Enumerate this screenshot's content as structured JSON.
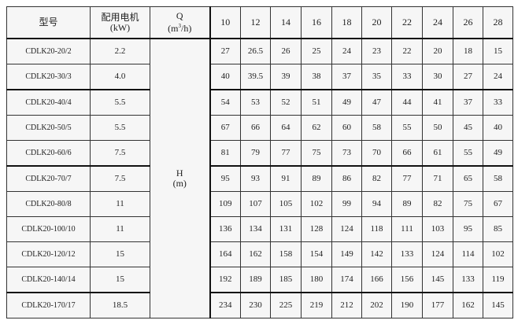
{
  "header": {
    "model": "型号",
    "motor_line1": "配用电机",
    "motor_line2": "(kW)",
    "flow_line1": "Q",
    "flow_line2_pre": "(m",
    "flow_sup": "3",
    "flow_line2_post": "/h)",
    "head_line1": "H",
    "head_line2": "(m)",
    "flows": [
      "10",
      "12",
      "14",
      "16",
      "18",
      "20",
      "22",
      "24",
      "26",
      "28"
    ]
  },
  "rows": [
    {
      "model": "CDLK20-20/2",
      "kw": "2.2",
      "heads": [
        "27",
        "26.5",
        "26",
        "25",
        "24",
        "23",
        "22",
        "20",
        "18",
        "15"
      ]
    },
    {
      "model": "CDLK20-30/3",
      "kw": "4.0",
      "heads": [
        "40",
        "39.5",
        "39",
        "38",
        "37",
        "35",
        "33",
        "30",
        "27",
        "24"
      ]
    },
    {
      "model": "CDLK20-40/4",
      "kw": "5.5",
      "heads": [
        "54",
        "53",
        "52",
        "51",
        "49",
        "47",
        "44",
        "41",
        "37",
        "33"
      ]
    },
    {
      "model": "CDLK20-50/5",
      "kw": "5.5",
      "heads": [
        "67",
        "66",
        "64",
        "62",
        "60",
        "58",
        "55",
        "50",
        "45",
        "40"
      ]
    },
    {
      "model": "CDLK20-60/6",
      "kw": "7.5",
      "heads": [
        "81",
        "79",
        "77",
        "75",
        "73",
        "70",
        "66",
        "61",
        "55",
        "49"
      ]
    },
    {
      "model": "CDLK20-70/7",
      "kw": "7.5",
      "heads": [
        "95",
        "93",
        "91",
        "89",
        "86",
        "82",
        "77",
        "71",
        "65",
        "58"
      ]
    },
    {
      "model": "CDLK20-80/8",
      "kw": "11",
      "heads": [
        "109",
        "107",
        "105",
        "102",
        "99",
        "94",
        "89",
        "82",
        "75",
        "67"
      ]
    },
    {
      "model": "CDLK20-100/10",
      "kw": "11",
      "heads": [
        "136",
        "134",
        "131",
        "128",
        "124",
        "118",
        "111",
        "103",
        "95",
        "85"
      ]
    },
    {
      "model": "CDLK20-120/12",
      "kw": "15",
      "heads": [
        "164",
        "162",
        "158",
        "154",
        "149",
        "142",
        "133",
        "124",
        "114",
        "102"
      ]
    },
    {
      "model": "CDLK20-140/14",
      "kw": "15",
      "heads": [
        "192",
        "189",
        "185",
        "180",
        "174",
        "166",
        "156",
        "145",
        "133",
        "119"
      ]
    },
    {
      "model": "CDLK20-170/17",
      "kw": "18.5",
      "heads": [
        "234",
        "230",
        "225",
        "219",
        "212",
        "202",
        "190",
        "177",
        "162",
        "145"
      ]
    }
  ]
}
